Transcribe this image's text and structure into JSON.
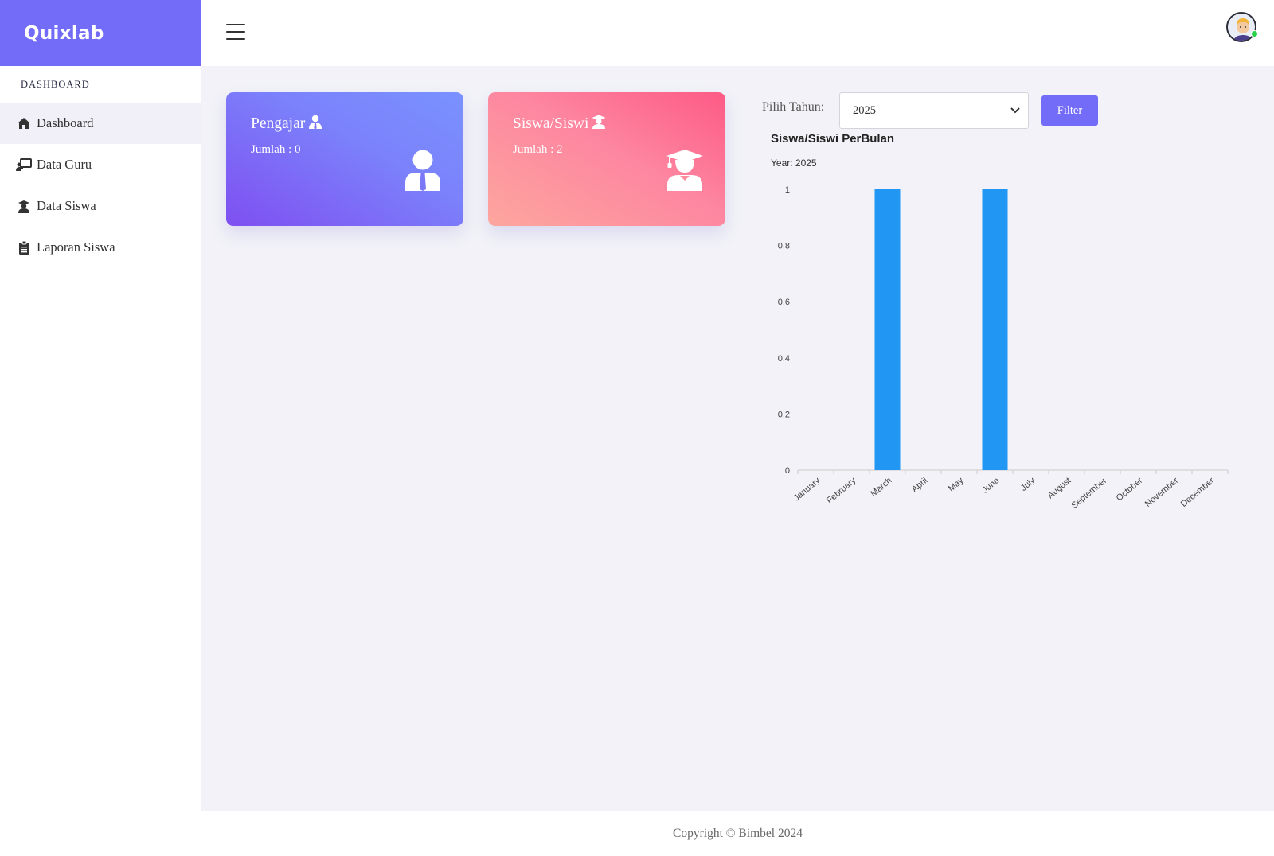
{
  "brand": {
    "name": "Quixlab"
  },
  "sidebar": {
    "section_label": "DASHBOARD",
    "items": [
      {
        "label": "Dashboard",
        "icon": "home-icon"
      },
      {
        "label": "Data Guru",
        "icon": "chalkboard-teacher-icon"
      },
      {
        "label": "Data Siswa",
        "icon": "graduate-icon"
      },
      {
        "label": "Laporan Siswa",
        "icon": "clipboard-icon"
      }
    ]
  },
  "cards": {
    "teacher": {
      "title": "Pengajar",
      "count": "Jumlah : 0",
      "icon": "user-tie-icon"
    },
    "student": {
      "title": "Siswa/Siswi",
      "count": "Jumlah : 2",
      "icon": "user-graduate-icon"
    }
  },
  "filter": {
    "label": "Pilih Tahun:",
    "selected": "2025",
    "button": "Filter"
  },
  "chart_data": {
    "type": "bar",
    "title": "Siswa/Siswi PerBulan",
    "subtitle": "Year: 2025",
    "categories": [
      "January",
      "February",
      "March",
      "April",
      "May",
      "June",
      "July",
      "August",
      "September",
      "October",
      "November",
      "December"
    ],
    "values": [
      0,
      0,
      1,
      0,
      0,
      1,
      0,
      0,
      0,
      0,
      0,
      0
    ],
    "ylim": [
      0,
      1
    ],
    "yticks": [
      "0",
      "0.2",
      "0.4",
      "0.6",
      "0.8",
      "1"
    ],
    "bar_color": "#2196f3"
  },
  "footer": {
    "text": "Copyright © Bimbel 2024"
  }
}
